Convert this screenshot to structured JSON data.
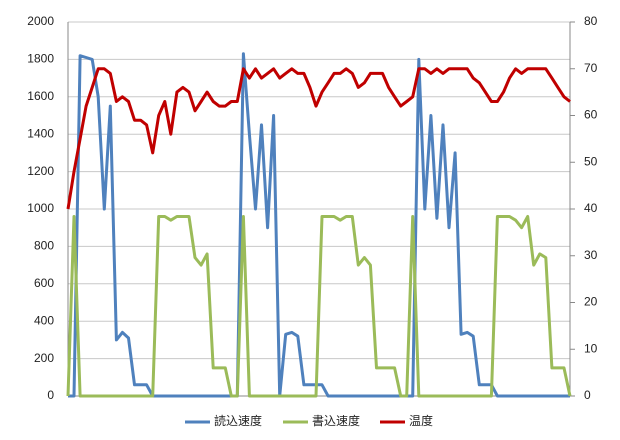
{
  "chart_data": {
    "type": "line",
    "categories": [
      null,
      null,
      null,
      null,
      null,
      null,
      null,
      null,
      null,
      null,
      null,
      null,
      null,
      null,
      null,
      null,
      null,
      null,
      null,
      null,
      null,
      null,
      null,
      null,
      null,
      null,
      null,
      null,
      null,
      null,
      null,
      null,
      null,
      null,
      null,
      null,
      null,
      null,
      null,
      null,
      null,
      null,
      null,
      null,
      null,
      null,
      null,
      null,
      null,
      null,
      null,
      null,
      null,
      null,
      null,
      null,
      null,
      null,
      null,
      null,
      null,
      null,
      null,
      null,
      null,
      null,
      null,
      null,
      null,
      null,
      null,
      null,
      null,
      null,
      null,
      null,
      null,
      null,
      null,
      null,
      null,
      null,
      null,
      null
    ],
    "series": [
      {
        "name": "読込速度",
        "color": "#4f81bd",
        "values": [
          0,
          0,
          1820,
          1810,
          1800,
          1600,
          1000,
          1550,
          300,
          340,
          310,
          60,
          60,
          60,
          0,
          0,
          0,
          0,
          0,
          0,
          0,
          0,
          0,
          0,
          0,
          0,
          0,
          0,
          0,
          1830,
          1400,
          1000,
          1450,
          900,
          1500,
          0,
          330,
          340,
          320,
          60,
          60,
          60,
          60,
          0,
          0,
          0,
          0,
          0,
          0,
          0,
          0,
          0,
          0,
          0,
          0,
          0,
          0,
          0,
          1800,
          1000,
          1500,
          950,
          1450,
          900,
          1300,
          330,
          340,
          320,
          60,
          60,
          60,
          0,
          0,
          0,
          0,
          0,
          0,
          0,
          0,
          0,
          0,
          0,
          0,
          0
        ]
      },
      {
        "name": "書込速度",
        "color": "#9bbb59",
        "values": [
          0,
          960,
          0,
          0,
          0,
          0,
          0,
          0,
          0,
          0,
          0,
          0,
          0,
          0,
          0,
          960,
          960,
          940,
          960,
          960,
          960,
          740,
          700,
          760,
          150,
          150,
          150,
          0,
          0,
          960,
          0,
          0,
          0,
          0,
          0,
          0,
          0,
          0,
          0,
          0,
          0,
          0,
          960,
          960,
          960,
          940,
          960,
          960,
          700,
          740,
          700,
          150,
          150,
          150,
          150,
          0,
          0,
          960,
          0,
          0,
          0,
          0,
          0,
          0,
          0,
          0,
          0,
          0,
          0,
          0,
          0,
          960,
          960,
          960,
          940,
          900,
          960,
          700,
          760,
          740,
          150,
          150,
          150,
          0
        ]
      },
      {
        "name": "温度",
        "color": "#c00000",
        "axis": "y2",
        "values": [
          40,
          48,
          55,
          62,
          66,
          70,
          70,
          69,
          63,
          64,
          63,
          59,
          59,
          58,
          52,
          60,
          63,
          56,
          65,
          66,
          65,
          61,
          63,
          65,
          63,
          62,
          62,
          63,
          63,
          70,
          68,
          70,
          68,
          69,
          70,
          68,
          69,
          70,
          69,
          69,
          66,
          62,
          65,
          67,
          69,
          69,
          70,
          69,
          66,
          67,
          69,
          69,
          69,
          66,
          64,
          62,
          63,
          64,
          70,
          70,
          69,
          70,
          69,
          70,
          70,
          70,
          70,
          68,
          67,
          65,
          63,
          63,
          65,
          68,
          70,
          69,
          70,
          70,
          70,
          70,
          68,
          66,
          64,
          63
        ]
      }
    ],
    "ylim": [
      0,
      2000
    ],
    "yticks": [
      0,
      200,
      400,
      600,
      800,
      1000,
      1200,
      1400,
      1600,
      1800,
      2000
    ],
    "y2lim": [
      0,
      80
    ],
    "y2ticks": [
      0,
      10,
      20,
      30,
      40,
      50,
      60,
      70,
      80
    ],
    "grid": true
  }
}
